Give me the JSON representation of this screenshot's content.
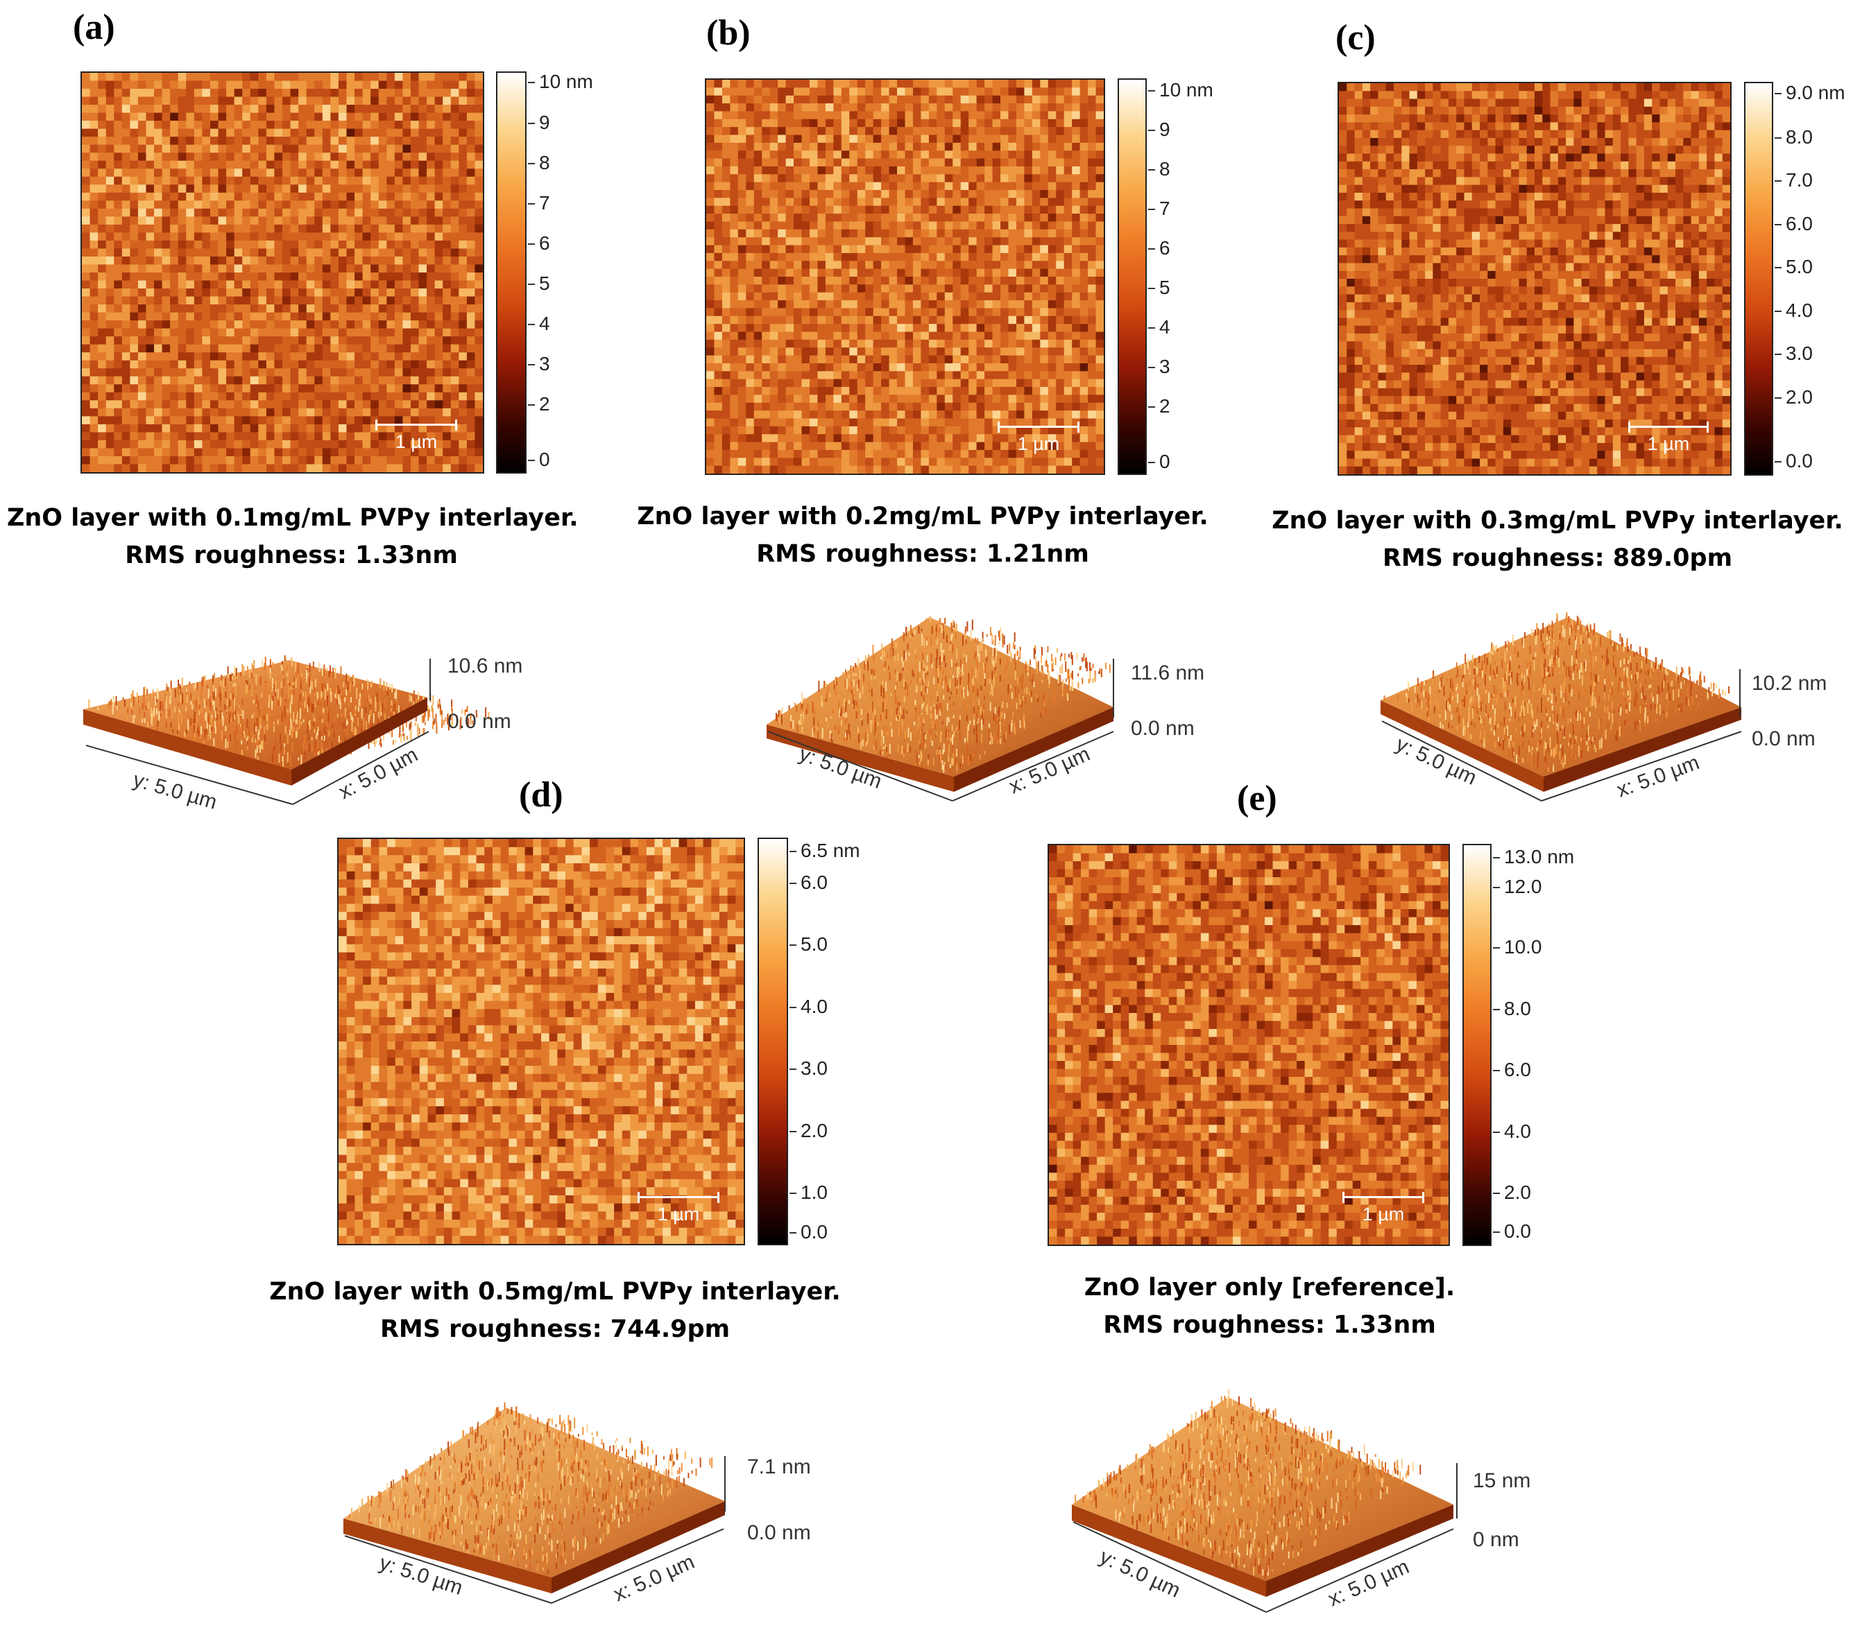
{
  "panels": [
    {
      "label": "(a)",
      "colorbar_ticks": [
        "10 nm",
        "9",
        "8",
        "7",
        "6",
        "5",
        "4",
        "3",
        "2",
        "0"
      ],
      "scale_bar": "1 µm",
      "caption_line1": "ZnO layer  with 0.1mg/mL PVPy interlayer.",
      "caption_line2": "RMS roughness: 1.33nm",
      "z_top": "10.6 nm",
      "z_bottom": "0.0 nm",
      "y_axis": "y: 5.0 µm",
      "x_axis": "x: 5.0 µm",
      "rms_roughness_nm": 1.33
    },
    {
      "label": "(b)",
      "colorbar_ticks": [
        "10 nm",
        "9",
        "8",
        "7",
        "6",
        "5",
        "4",
        "3",
        "2",
        "0"
      ],
      "scale_bar": "1 µm",
      "caption_line1": "ZnO layer  with 0.2mg/mL PVPy interlayer.",
      "caption_line2": "RMS roughness: 1.21nm",
      "z_top": "11.6 nm",
      "z_bottom": "0.0 nm",
      "y_axis": "y: 5.0 µm",
      "x_axis": "x: 5.0 µm",
      "rms_roughness_nm": 1.21
    },
    {
      "label": "(c)",
      "colorbar_ticks": [
        "9.0 nm",
        "8.0",
        "7.0",
        "6.0",
        "5.0",
        "4.0",
        "3.0",
        "2.0",
        "0.0"
      ],
      "scale_bar": "1 µm",
      "caption_line1": "ZnO layer  with 0.3mg/mL PVPy interlayer.",
      "caption_line2": "RMS roughness: 889.0pm",
      "z_top": "10.2 nm",
      "z_bottom": "0.0 nm",
      "y_axis": "y: 5.0 µm",
      "x_axis": "x: 5.0 µm",
      "rms_roughness_nm": 0.889
    },
    {
      "label": "(d)",
      "colorbar_ticks": [
        "6.5 nm",
        "6.0",
        "5.0",
        "4.0",
        "3.0",
        "2.0",
        "1.0",
        "0.0"
      ],
      "scale_bar": "1 µm",
      "caption_line1": "ZnO layer  with 0.5mg/mL PVPy interlayer.",
      "caption_line2": "RMS roughness: 744.9pm",
      "z_top": "7.1 nm",
      "z_bottom": "0.0 nm",
      "y_axis": "y: 5.0 µm",
      "x_axis": "x: 5.0 µm",
      "rms_roughness_nm": 0.7449
    },
    {
      "label": "(e)",
      "colorbar_ticks": [
        "13.0 nm",
        "12.0",
        "10.0",
        "8.0",
        "6.0",
        "4.0",
        "2.0",
        "0.0"
      ],
      "scale_bar": "1 µm",
      "caption_line1": "ZnO layer only [reference].",
      "caption_line2": "RMS roughness: 1.33nm",
      "z_top": "15 nm",
      "z_bottom": "0 nm",
      "y_axis": "y: 5.0 µm",
      "x_axis": "x: 5.0 µm",
      "rms_roughness_nm": 1.33
    }
  ],
  "colors": {
    "afm_dark": "#7a1e05",
    "afm_mid": "#c85a1e",
    "afm_light": "#f6b468"
  }
}
